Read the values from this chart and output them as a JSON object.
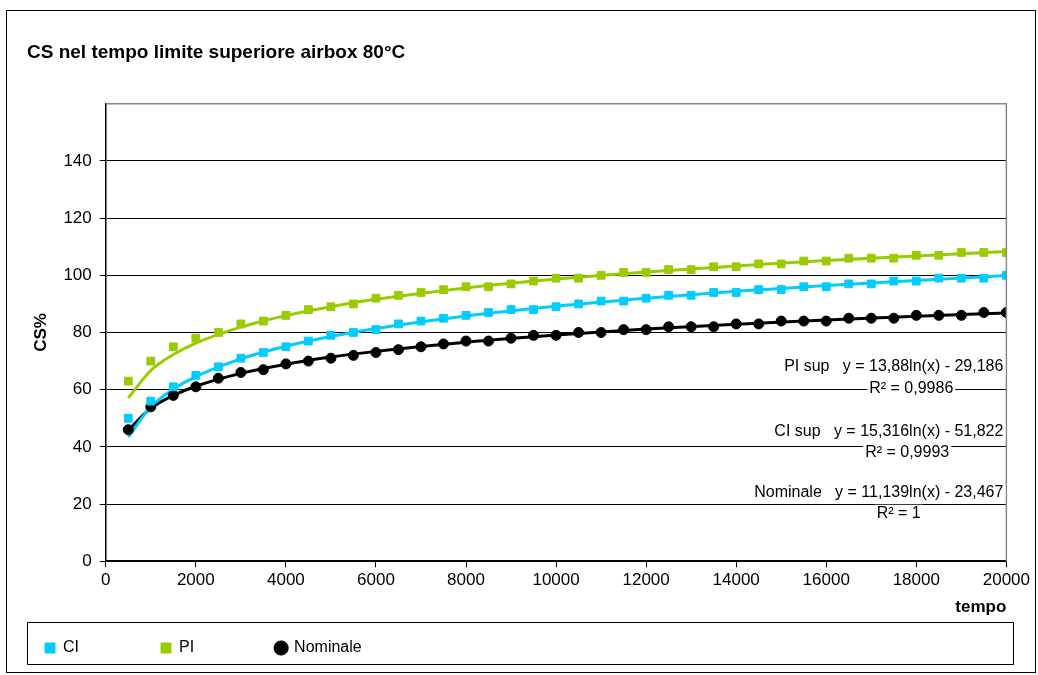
{
  "chart_data": {
    "type": "scatter",
    "title": "CS nel tempo limite superiore airbox 80°C",
    "xlabel": "tempo",
    "ylabel": "CS%",
    "x": [
      500,
      1000,
      1500,
      2000,
      2500,
      3000,
      3500,
      4000,
      4500,
      5000,
      5500,
      6000,
      6500,
      7000,
      7500,
      8000,
      8500,
      9000,
      9500,
      10000,
      10500,
      11000,
      11500,
      12000,
      12500,
      13000,
      13500,
      14000,
      14500,
      15000,
      15500,
      16000,
      16500,
      17000,
      17500,
      18000,
      18500,
      19000,
      19500,
      20000
    ],
    "series": [
      {
        "name": "CI",
        "color": "#00ccff",
        "marker": "square",
        "values": [
          50,
          56,
          61,
          65,
          68,
          71,
          73,
          75,
          77,
          79,
          80,
          81,
          83,
          84,
          85,
          86,
          87,
          88,
          88,
          89,
          90,
          91,
          91,
          92,
          93,
          93,
          94,
          94,
          95,
          95,
          96,
          96,
          97,
          97,
          98,
          98,
          99,
          99,
          99,
          100
        ]
      },
      {
        "name": "PI",
        "color": "#99cc00",
        "marker": "square",
        "values": [
          63,
          70,
          75,
          78,
          80,
          83,
          84,
          86,
          88,
          89,
          90,
          92,
          93,
          94,
          95,
          96,
          96,
          97,
          98,
          99,
          99,
          100,
          101,
          101,
          102,
          102,
          103,
          103,
          104,
          104,
          105,
          105,
          106,
          106,
          106,
          107,
          107,
          108,
          108,
          108
        ]
      },
      {
        "name": "Nominale",
        "color": "#000000",
        "marker": "circle",
        "values": [
          46,
          54,
          58,
          61,
          64,
          66,
          67,
          69,
          70,
          71,
          72,
          73,
          74,
          75,
          76,
          77,
          77,
          78,
          79,
          79,
          80,
          80,
          81,
          81,
          82,
          82,
          82,
          83,
          83,
          84,
          84,
          84,
          85,
          85,
          85,
          86,
          86,
          86,
          87,
          87
        ]
      },
      {
        "type": "line",
        "color": "#99cc00",
        "marker": "none",
        "x": [
          500,
          1000,
          1500,
          2000,
          3000,
          4000,
          5000,
          6000,
          8000,
          10000,
          12000,
          14000,
          16000,
          18000,
          20000
        ],
        "values": [
          57.1,
          66.7,
          72.3,
          76.3,
          81.9,
          85.9,
          89.0,
          91.6,
          95.6,
          98.7,
          101.2,
          103.3,
          105.2,
          106.8,
          108.3
        ]
      },
      {
        "type": "line",
        "color": "#00ccff",
        "marker": "none",
        "x": [
          500,
          1000,
          1500,
          2000,
          3000,
          4000,
          5000,
          6000,
          8000,
          10000,
          12000,
          14000,
          16000,
          18000,
          20000
        ],
        "values": [
          43.4,
          54.0,
          60.2,
          64.6,
          70.8,
          75.2,
          78.6,
          81.4,
          85.8,
          89.2,
          92.0,
          94.4,
          96.4,
          98.2,
          99.9
        ]
      },
      {
        "type": "line",
        "color": "#000000",
        "marker": "none",
        "x": [
          500,
          1000,
          1500,
          2000,
          3000,
          4000,
          5000,
          6000,
          8000,
          10000,
          12000,
          14000,
          16000,
          18000,
          20000
        ],
        "values": [
          45.8,
          53.5,
          58.0,
          61.2,
          65.7,
          68.9,
          71.4,
          73.4,
          76.6,
          79.1,
          81.2,
          82.9,
          84.4,
          85.7,
          86.8
        ]
      }
    ],
    "xlim": [
      0,
      20000
    ],
    "xticks": [
      0,
      2000,
      4000,
      6000,
      8000,
      10000,
      12000,
      14000,
      16000,
      18000,
      20000
    ],
    "ylim": [
      0,
      160
    ],
    "yticks": [
      0,
      20,
      40,
      60,
      80,
      100,
      120,
      140
    ],
    "grid": "y",
    "legend": "bottom",
    "annotations": [
      "PI sup   y = 13,88ln(x) - 29,186",
      "R² = 0,9986",
      "CI sup   y = 15,316ln(x) - 51,822",
      "R² = 0,9993",
      "Nominale   y = 11,139ln(x) - 23,467",
      "R² = 1"
    ]
  }
}
